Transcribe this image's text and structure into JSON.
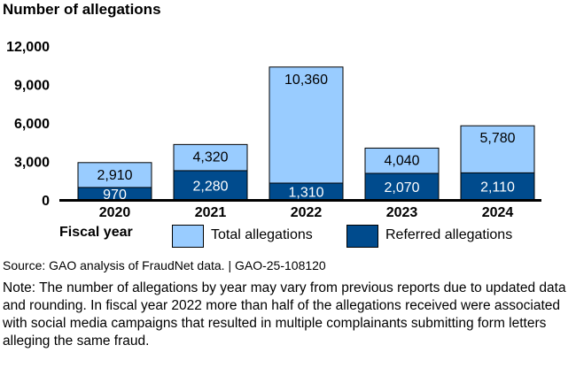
{
  "chart_data": {
    "type": "bar",
    "stacked": true,
    "title": "",
    "ylabel": "Number of allegations",
    "xlabel": "Fiscal year",
    "ylim": [
      0,
      12000
    ],
    "yticks": [
      "0",
      "3,000",
      "6,000",
      "9,000",
      "12,000"
    ],
    "ytick_values": [
      0,
      3000,
      6000,
      9000,
      12000
    ],
    "categories": [
      "2020",
      "2021",
      "2022",
      "2023",
      "2024"
    ],
    "series": [
      {
        "name": "Total allegations",
        "values": [
          2910,
          4320,
          10360,
          4040,
          5780
        ],
        "labels": [
          "2,910",
          "4,320",
          "10,360",
          "4,040",
          "5,780"
        ],
        "color": "#99ccff"
      },
      {
        "name": "Referred allegations",
        "values": [
          970,
          2280,
          1310,
          2070,
          2110
        ],
        "labels": [
          "970",
          "2,280",
          "1,310",
          "2,070",
          "2,110"
        ],
        "color": "#004b8d"
      }
    ],
    "legend": "bottom",
    "grid": false
  },
  "source": "Source: GAO analysis of FraudNet data.  |  GAO-25-108120",
  "note": "Note: The number of allegations by year may vary from previous reports due to updated data and rounding. In fiscal year 2022 more than half of the allegations received were associated with social media campaigns that resulted in multiple complainants submitting form letters alleging the same fraud."
}
